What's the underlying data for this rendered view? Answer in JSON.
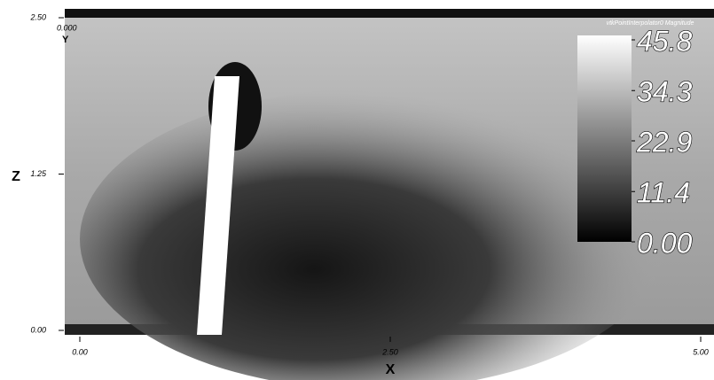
{
  "chart_data": {
    "type": "field",
    "title": "vtkPointInterpolator0 Magnitude",
    "xlabel": "X",
    "ylabel": "Z",
    "xlim": [
      0,
      5
    ],
    "ylim": [
      0,
      2.5
    ],
    "xticks": [
      {
        "value": 0,
        "label": "0.00"
      },
      {
        "value": 2.5,
        "label": "2.50"
      },
      {
        "value": 5,
        "label": "5.00"
      }
    ],
    "yticks": [
      {
        "value": 0,
        "label": "0.00"
      },
      {
        "value": 1.25,
        "label": "1.25"
      },
      {
        "value": 2.5,
        "label": "2.50"
      }
    ],
    "clim": [
      0,
      45.8
    ],
    "cticks": [
      {
        "value": 0,
        "label": "0.00"
      },
      11.4,
      22.9,
      34.3,
      45.8
    ],
    "annotations": [
      "0.000",
      "Y"
    ]
  }
}
